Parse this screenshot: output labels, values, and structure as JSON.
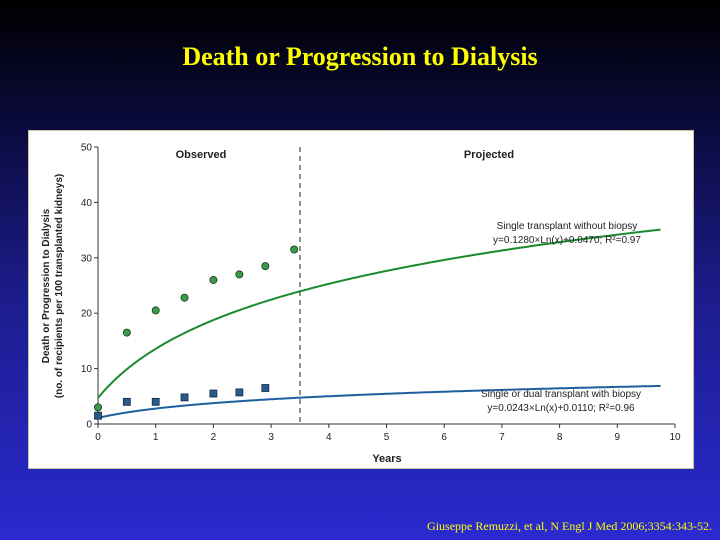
{
  "slide": {
    "title": "Death or Progression to Dialysis",
    "citation": "Giuseppe Remuzzi, et al, N Engl J Med 2006;3354:343-52."
  },
  "colors": {
    "title": "#ffff00",
    "green_series": "#1a8a2e",
    "green_marker": "#3a9a4a",
    "blue_series": "#1f5f9f",
    "blue_marker": "#2a5a8a",
    "divider": "#555555"
  },
  "chart_data": {
    "type": "scatter",
    "xlabel": "Years",
    "ylabel_line1": "Death or Progression to Dialysis",
    "ylabel_line2": "(no. of recipients per 100 transplanted kidneys)",
    "xlim": [
      0,
      10
    ],
    "ylim": [
      0,
      50
    ],
    "xticks": [
      0,
      1,
      2,
      3,
      4,
      5,
      6,
      7,
      8,
      9,
      10
    ],
    "yticks": [
      0,
      10,
      20,
      30,
      40,
      50
    ],
    "grid": false,
    "divider_x": 3.5,
    "region_labels": {
      "left": "Observed",
      "right": "Projected"
    },
    "series": [
      {
        "key": "green",
        "annotation_line1": "Single transplant without biopsy",
        "annotation_line2": "y=0.1280×Ln(x)+0.0470; R²=0.97",
        "marker": "circle",
        "points": [
          [
            0,
            3
          ],
          [
            0.5,
            16.5
          ],
          [
            1,
            20.5
          ],
          [
            1.5,
            22.8
          ],
          [
            2,
            26
          ],
          [
            2.45,
            27
          ],
          [
            2.9,
            28.5
          ],
          [
            3.4,
            31.5
          ]
        ],
        "fit": {
          "a": 12.8,
          "b": 4.7,
          "x_start": 0,
          "x_end": 9.75
        }
      },
      {
        "key": "blue",
        "annotation_line1": "Single or dual transplant with biopsy",
        "annotation_line2": "y=0.0243×Ln(x)+0.0110; R²=0.96",
        "marker": "square",
        "points": [
          [
            0,
            1.5
          ],
          [
            0.5,
            4
          ],
          [
            1,
            4
          ],
          [
            1.5,
            4.8
          ],
          [
            2,
            5.5
          ],
          [
            2.45,
            5.7
          ],
          [
            2.9,
            6.5
          ]
        ],
        "fit": {
          "a": 2.43,
          "b": 1.1,
          "x_start": 0,
          "x_end": 9.75
        }
      }
    ]
  }
}
